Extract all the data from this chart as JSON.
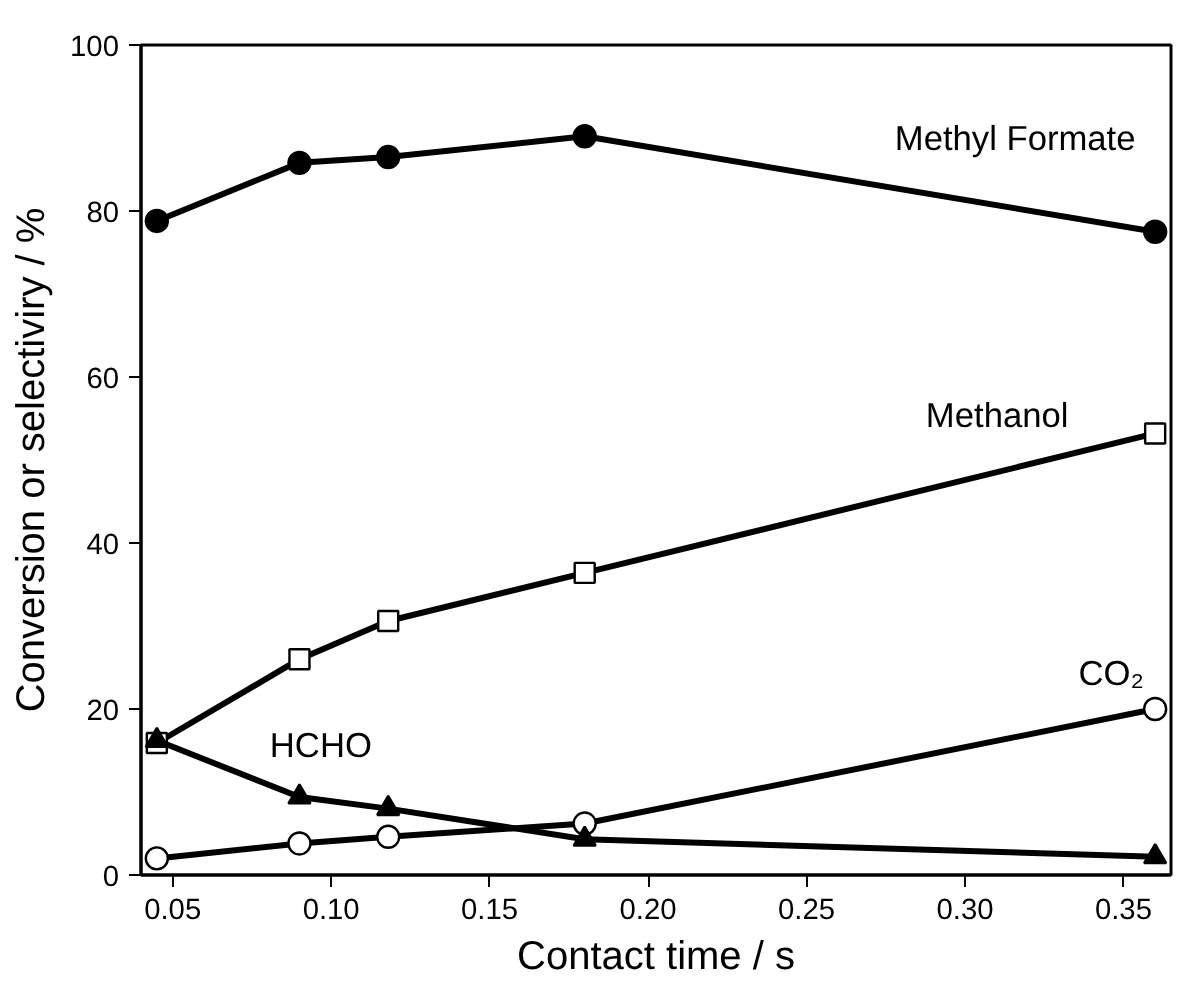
{
  "chart_data": {
    "type": "line",
    "xlabel": "Contact time / s",
    "ylabel": "Conversion or selectiviry / %",
    "x": [
      0.045,
      0.09,
      0.118,
      0.18,
      0.36
    ],
    "series": [
      {
        "name": "Methyl Formate",
        "color": "#000000",
        "marker": "circle",
        "values": [
          78.8,
          85.8,
          86.5,
          89,
          77.5
        ]
      },
      {
        "name": "Methanol",
        "color": "#000000",
        "marker": "square",
        "values": [
          15.9,
          26,
          30.6,
          36.4,
          53.2
        ]
      },
      {
        "name": "CO₂",
        "color": "#000000",
        "marker": "circle",
        "values": [
          2,
          3.8,
          4.6,
          6.2,
          20
        ]
      },
      {
        "name": "HCHO",
        "color": "#000000",
        "marker": "triangle",
        "values": [
          16.2,
          9.4,
          8,
          4.3,
          2.2
        ]
      }
    ],
    "xlim": [
      0.04,
      0.365
    ],
    "ylim": [
      0,
      100
    ],
    "xticks": [
      0.05,
      {
        "value": 0.1,
        "label": "0.10"
      },
      0.15,
      {
        "value": 0.2,
        "label": "0.20"
      },
      0.25,
      {
        "value": 0.3,
        "label": "0.30"
      },
      0.35
    ],
    "yticks": [
      0,
      20,
      40,
      60,
      80,
      100
    ],
    "grid": false,
    "line_style": "solid"
  }
}
